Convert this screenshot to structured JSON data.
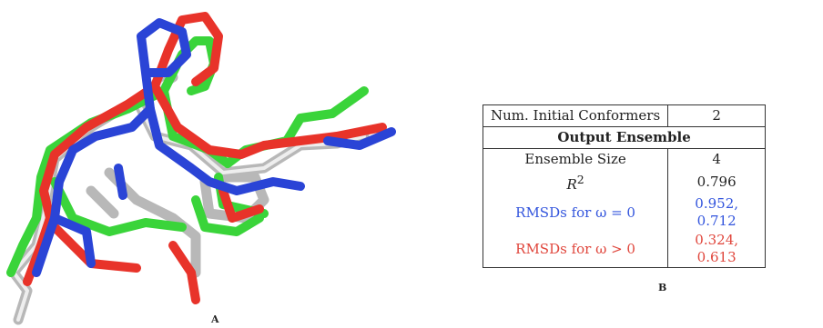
{
  "figure": {
    "panel_a_label": "A",
    "panel_b_label": "B"
  },
  "colors": {
    "blue": "#2a44d6",
    "red": "#e8332a",
    "green": "#3ad43a",
    "grey": "#c8c8c8"
  },
  "table": {
    "row1": {
      "label": "Num. Initial Conformers",
      "value": "2"
    },
    "section_header": "Output Ensemble",
    "rows": [
      {
        "label": "Ensemble Size",
        "value": "4"
      },
      {
        "label": "R",
        "label_sup": "2",
        "value": "0.796"
      },
      {
        "label": "RMSDs for ω = 0",
        "value": "0.952, 0.712"
      },
      {
        "label": "RMSDs for ω > 0",
        "value": "0.324, 0.613"
      }
    ]
  }
}
